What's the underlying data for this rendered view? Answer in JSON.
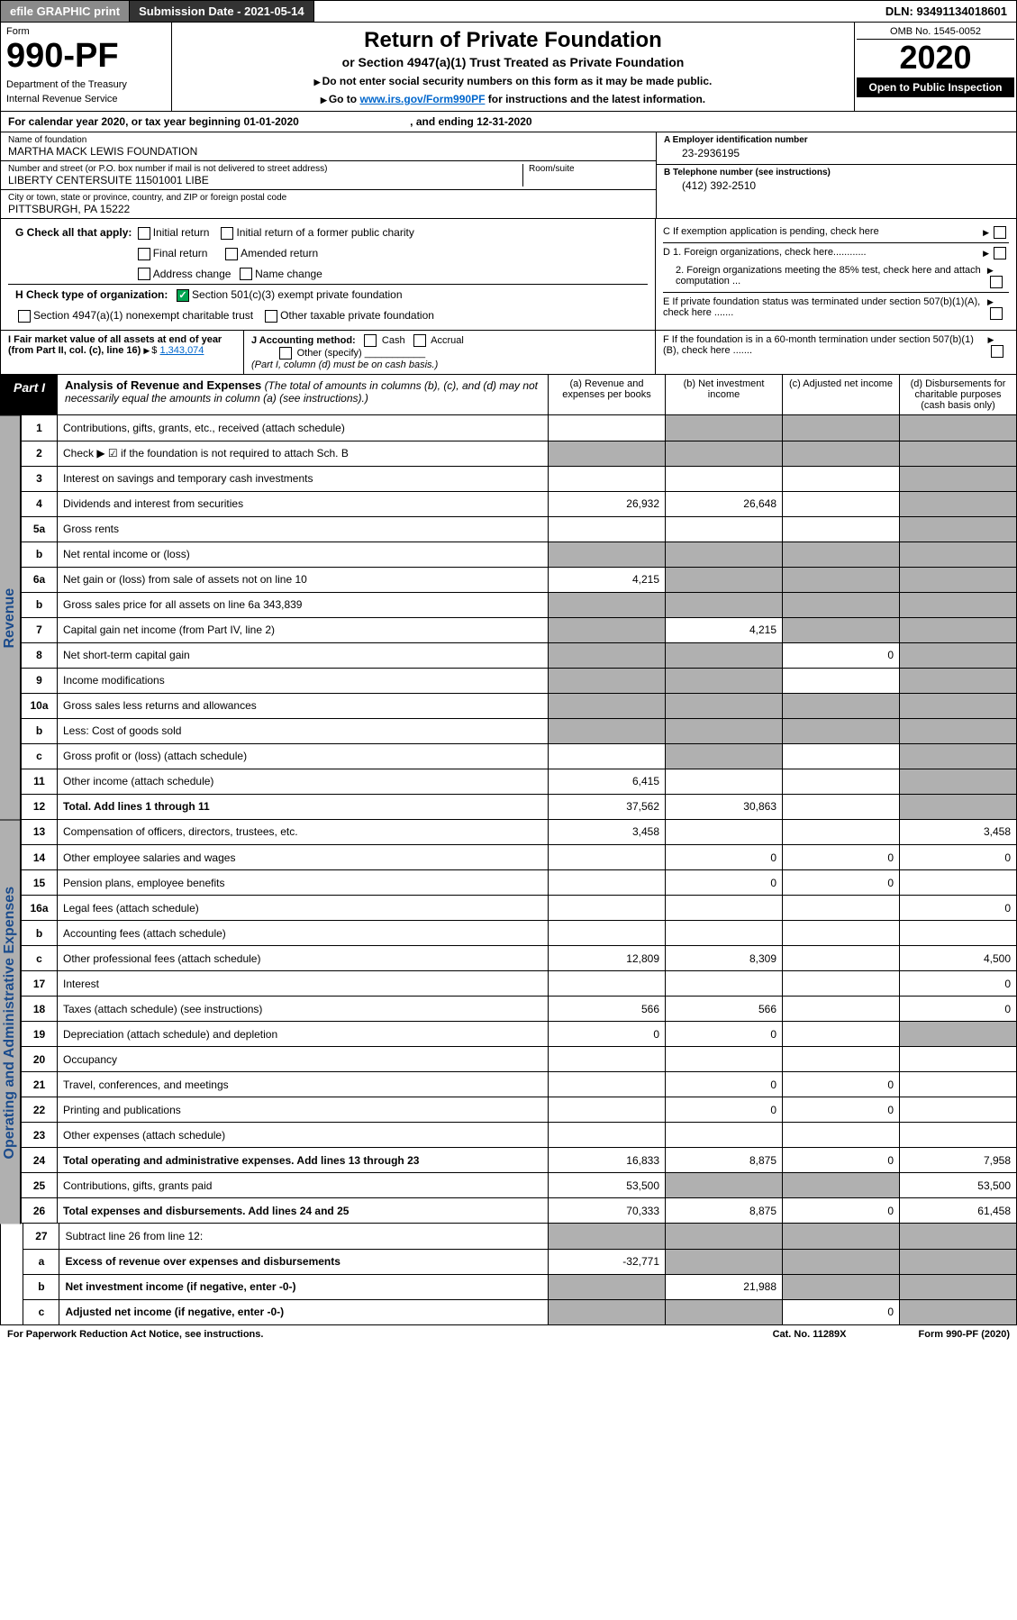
{
  "top": {
    "efile": "efile GRAPHIC print",
    "sub_label": "Submission Date - 2021-05-14",
    "dln": "DLN: 93491134018601"
  },
  "hdr": {
    "form_label": "Form",
    "form_num": "990-PF",
    "dept1": "Department of the Treasury",
    "dept2": "Internal Revenue Service",
    "title": "Return of Private Foundation",
    "sub": "or Section 4947(a)(1) Trust Treated as Private Foundation",
    "note1": "Do not enter social security numbers on this form as it may be made public.",
    "note2_pre": "Go to ",
    "note2_link": "www.irs.gov/Form990PF",
    "note2_post": " for instructions and the latest information.",
    "omb": "OMB No. 1545-0052",
    "year": "2020",
    "open": "Open to Public Inspection"
  },
  "cal": {
    "text": "For calendar year 2020, or tax year beginning 01-01-2020",
    "end": ", and ending 12-31-2020"
  },
  "info": {
    "name_lbl": "Name of foundation",
    "name": "MARTHA MACK LEWIS FOUNDATION",
    "addr_lbl": "Number and street (or P.O. box number if mail is not delivered to street address)",
    "addr": "LIBERTY CENTERSUITE 11501001 LIBE",
    "room_lbl": "Room/suite",
    "city_lbl": "City or town, state or province, country, and ZIP or foreign postal code",
    "city": "PITTSBURGH, PA  15222",
    "ein_lbl": "A Employer identification number",
    "ein": "23-2936195",
    "tel_lbl": "B Telephone number (see instructions)",
    "tel": "(412) 392-2510",
    "c": "C If exemption application is pending, check here",
    "d1": "D 1. Foreign organizations, check here............",
    "d2": "2. Foreign organizations meeting the 85% test, check here and attach computation ...",
    "e": "E  If private foundation status was terminated under section 507(b)(1)(A), check here .......",
    "f": "F  If the foundation is in a 60-month termination under section 507(b)(1)(B), check here .......",
    "g": "G Check all that apply:",
    "g_opts": [
      "Initial return",
      "Initial return of a former public charity",
      "Final return",
      "Amended return",
      "Address change",
      "Name change"
    ],
    "h": "H Check type of organization:",
    "h_opts": [
      "Section 501(c)(3) exempt private foundation",
      "Section 4947(a)(1) nonexempt charitable trust",
      "Other taxable private foundation"
    ],
    "i_lbl": "I Fair market value of all assets at end of year (from Part II, col. (c), line 16)",
    "i_val": "1,343,074",
    "j_lbl": "J Accounting method:",
    "j_opts": [
      "Cash",
      "Accrual",
      "Other (specify)"
    ],
    "j_note": "(Part I, column (d) must be on cash basis.)"
  },
  "part1": {
    "badge": "Part I",
    "title": "Analysis of Revenue and Expenses",
    "title_note": "(The total of amounts in columns (b), (c), and (d) may not necessarily equal the amounts in column (a) (see instructions).)",
    "cols": [
      "(a)   Revenue and expenses per books",
      "(b)   Net investment income",
      "(c)   Adjusted net income",
      "(d)  Disbursements for charitable purposes (cash basis only)"
    ]
  },
  "vlabels": {
    "rev": "Revenue",
    "opex": "Operating and Administrative Expenses"
  },
  "rows": [
    {
      "n": "1",
      "d": "Contributions, gifts, grants, etc., received (attach schedule)",
      "a": "",
      "b": "",
      "c": "",
      "dd": "",
      "bg": [
        "",
        "g",
        "g",
        "g"
      ]
    },
    {
      "n": "2",
      "d": "Check ▶ ☑ if the foundation is not required to attach Sch. B",
      "a": "",
      "b": "",
      "c": "",
      "dd": "",
      "bg": [
        "g",
        "g",
        "g",
        "g"
      ]
    },
    {
      "n": "3",
      "d": "Interest on savings and temporary cash investments",
      "a": "",
      "b": "",
      "c": "",
      "dd": "",
      "bg": [
        "",
        "",
        "",
        "g"
      ]
    },
    {
      "n": "4",
      "d": "Dividends and interest from securities",
      "a": "26,932",
      "b": "26,648",
      "c": "",
      "dd": "",
      "bg": [
        "",
        "",
        "",
        "g"
      ]
    },
    {
      "n": "5a",
      "d": "Gross rents",
      "a": "",
      "b": "",
      "c": "",
      "dd": "",
      "bg": [
        "",
        "",
        "",
        "g"
      ]
    },
    {
      "n": "b",
      "d": "Net rental income or (loss)",
      "a": "",
      "b": "",
      "c": "",
      "dd": "",
      "bg": [
        "g",
        "g",
        "g",
        "g"
      ]
    },
    {
      "n": "6a",
      "d": "Net gain or (loss) from sale of assets not on line 10",
      "a": "4,215",
      "b": "",
      "c": "",
      "dd": "",
      "bg": [
        "",
        "g",
        "g",
        "g"
      ]
    },
    {
      "n": "b",
      "d": "Gross sales price for all assets on line 6a   343,839",
      "a": "",
      "b": "",
      "c": "",
      "dd": "",
      "bg": [
        "g",
        "g",
        "g",
        "g"
      ]
    },
    {
      "n": "7",
      "d": "Capital gain net income (from Part IV, line 2)",
      "a": "",
      "b": "4,215",
      "c": "",
      "dd": "",
      "bg": [
        "g",
        "",
        "g",
        "g"
      ]
    },
    {
      "n": "8",
      "d": "Net short-term capital gain",
      "a": "",
      "b": "",
      "c": "0",
      "dd": "",
      "bg": [
        "g",
        "g",
        "",
        "g"
      ]
    },
    {
      "n": "9",
      "d": "Income modifications",
      "a": "",
      "b": "",
      "c": "",
      "dd": "",
      "bg": [
        "g",
        "g",
        "",
        "g"
      ]
    },
    {
      "n": "10a",
      "d": "Gross sales less returns and allowances",
      "a": "",
      "b": "",
      "c": "",
      "dd": "",
      "bg": [
        "g",
        "g",
        "g",
        "g"
      ]
    },
    {
      "n": "b",
      "d": "Less: Cost of goods sold",
      "a": "",
      "b": "",
      "c": "",
      "dd": "",
      "bg": [
        "g",
        "g",
        "g",
        "g"
      ]
    },
    {
      "n": "c",
      "d": "Gross profit or (loss) (attach schedule)",
      "a": "",
      "b": "",
      "c": "",
      "dd": "",
      "bg": [
        "",
        "g",
        "",
        "g"
      ]
    },
    {
      "n": "11",
      "d": "Other income (attach schedule)",
      "a": "6,415",
      "b": "",
      "c": "",
      "dd": "",
      "bg": [
        "",
        "",
        "",
        "g"
      ]
    },
    {
      "n": "12",
      "d": "Total. Add lines 1 through 11",
      "a": "37,562",
      "b": "30,863",
      "c": "",
      "dd": "",
      "bg": [
        "",
        "",
        "",
        "g"
      ],
      "bold": true
    }
  ],
  "rows2": [
    {
      "n": "13",
      "d": "Compensation of officers, directors, trustees, etc.",
      "a": "3,458",
      "b": "",
      "c": "",
      "dd": "3,458"
    },
    {
      "n": "14",
      "d": "Other employee salaries and wages",
      "a": "",
      "b": "0",
      "c": "0",
      "dd": "0"
    },
    {
      "n": "15",
      "d": "Pension plans, employee benefits",
      "a": "",
      "b": "0",
      "c": "0",
      "dd": ""
    },
    {
      "n": "16a",
      "d": "Legal fees (attach schedule)",
      "a": "",
      "b": "",
      "c": "",
      "dd": "0"
    },
    {
      "n": "b",
      "d": "Accounting fees (attach schedule)",
      "a": "",
      "b": "",
      "c": "",
      "dd": ""
    },
    {
      "n": "c",
      "d": "Other professional fees (attach schedule)",
      "a": "12,809",
      "b": "8,309",
      "c": "",
      "dd": "4,500"
    },
    {
      "n": "17",
      "d": "Interest",
      "a": "",
      "b": "",
      "c": "",
      "dd": "0"
    },
    {
      "n": "18",
      "d": "Taxes (attach schedule) (see instructions)",
      "a": "566",
      "b": "566",
      "c": "",
      "dd": "0"
    },
    {
      "n": "19",
      "d": "Depreciation (attach schedule) and depletion",
      "a": "0",
      "b": "0",
      "c": "",
      "dd": "",
      "bg": [
        "",
        "",
        "",
        "g"
      ]
    },
    {
      "n": "20",
      "d": "Occupancy",
      "a": "",
      "b": "",
      "c": "",
      "dd": ""
    },
    {
      "n": "21",
      "d": "Travel, conferences, and meetings",
      "a": "",
      "b": "0",
      "c": "0",
      "dd": ""
    },
    {
      "n": "22",
      "d": "Printing and publications",
      "a": "",
      "b": "0",
      "c": "0",
      "dd": ""
    },
    {
      "n": "23",
      "d": "Other expenses (attach schedule)",
      "a": "",
      "b": "",
      "c": "",
      "dd": ""
    },
    {
      "n": "24",
      "d": "Total operating and administrative expenses. Add lines 13 through 23",
      "a": "16,833",
      "b": "8,875",
      "c": "0",
      "dd": "7,958",
      "bold": true
    },
    {
      "n": "25",
      "d": "Contributions, gifts, grants paid",
      "a": "53,500",
      "b": "",
      "c": "",
      "dd": "53,500",
      "bg": [
        "",
        "g",
        "g",
        ""
      ]
    },
    {
      "n": "26",
      "d": "Total expenses and disbursements. Add lines 24 and 25",
      "a": "70,333",
      "b": "8,875",
      "c": "0",
      "dd": "61,458",
      "bold": true
    }
  ],
  "rows3": [
    {
      "n": "27",
      "d": "Subtract line 26 from line 12:",
      "a": "",
      "b": "",
      "c": "",
      "dd": "",
      "bg": [
        "g",
        "g",
        "g",
        "g"
      ]
    },
    {
      "n": "a",
      "d": "Excess of revenue over expenses and disbursements",
      "a": "-32,771",
      "b": "",
      "c": "",
      "dd": "",
      "bg": [
        "",
        "g",
        "g",
        "g"
      ],
      "bold": true
    },
    {
      "n": "b",
      "d": "Net investment income (if negative, enter -0-)",
      "a": "",
      "b": "21,988",
      "c": "",
      "dd": "",
      "bg": [
        "g",
        "",
        "g",
        "g"
      ],
      "bold": true
    },
    {
      "n": "c",
      "d": "Adjusted net income (if negative, enter -0-)",
      "a": "",
      "b": "",
      "c": "0",
      "dd": "",
      "bg": [
        "g",
        "g",
        "",
        "g"
      ],
      "bold": true
    }
  ],
  "foot": {
    "l": "For Paperwork Reduction Act Notice, see instructions.",
    "c": "Cat. No. 11289X",
    "r": "Form 990-PF (2020)"
  },
  "colors": {
    "grey_bg": "#b0b0b0",
    "link": "#0066cc",
    "check_green": "#00a651",
    "vert_text": "#1a4b8c"
  }
}
